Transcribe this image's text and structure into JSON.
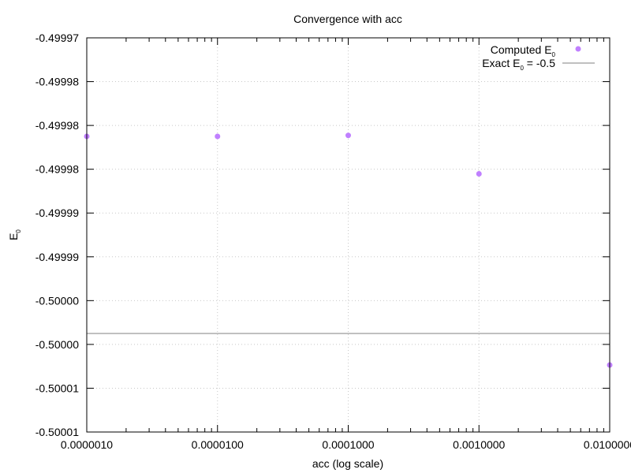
{
  "chart_data": {
    "type": "scatter",
    "title": "Convergence with acc",
    "xlabel": "acc (log scale)",
    "ylabel": {
      "base": "E",
      "subscript": "0"
    },
    "xscale": "log",
    "xlim": [
      1e-06,
      0.01
    ],
    "ylim": [
      -0.50001,
      -0.49997
    ],
    "grid": true,
    "legend_position": "top-right",
    "x_tick_labels": [
      "0.0000010",
      "0.0000100",
      "0.0001000",
      "0.0010000",
      "0.0100000"
    ],
    "y_tick_labels": [
      "-0.49997",
      "-0.49998",
      "-0.49998",
      "-0.49998",
      "-0.49999",
      "-0.49999",
      "-0.50000",
      "-0.50000",
      "-0.50001",
      "-0.50001"
    ],
    "series": [
      {
        "name": "Computed E_0",
        "legend": {
          "base": "Computed E",
          "subscript": "0",
          "tail": ""
        },
        "kind": "points",
        "color": "#c080ff",
        "x": [
          1e-06,
          1e-05,
          0.0001,
          0.001,
          0.01
        ],
        "y": [
          -0.49998,
          -0.49998,
          -0.4999799,
          -0.4999838,
          -0.5000032
        ]
      },
      {
        "name": "Exact E_0 = -0.5",
        "legend": {
          "base": "Exact E",
          "subscript": "0",
          "tail": " = -0.5"
        },
        "kind": "hline",
        "color": "#c0c0c0",
        "y": -0.5
      }
    ]
  }
}
